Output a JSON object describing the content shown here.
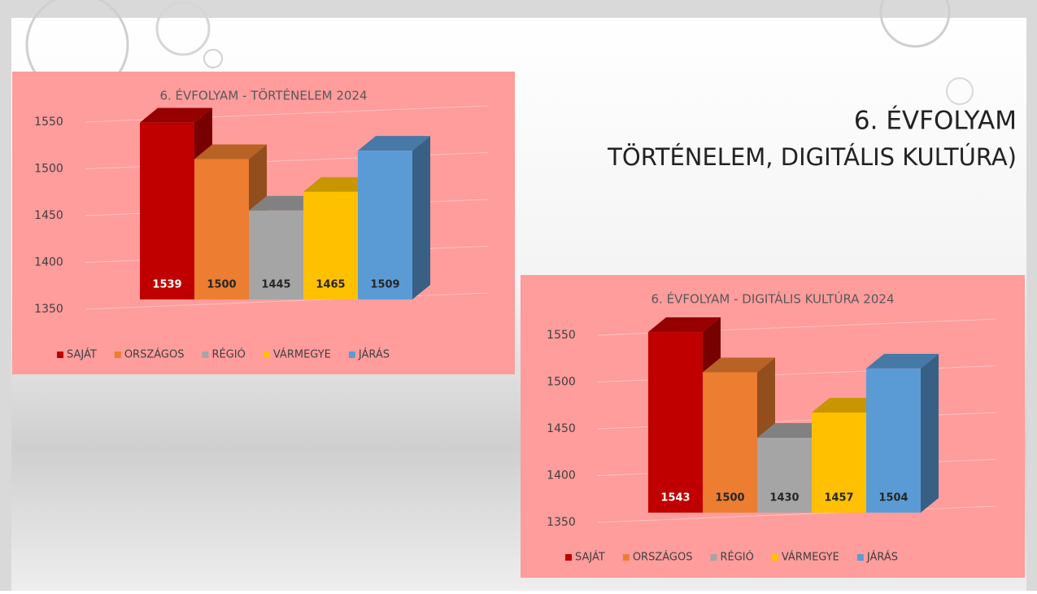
{
  "slide": {
    "title_lines": [
      "6. ÉVFOLYAM",
      "TÖRTÉNELEM, DIGITÁLIS KULTÚRA)"
    ]
  },
  "chart_data": [
    {
      "type": "bar",
      "title": "6. ÉVFOLYAM - TÖRTÉNELEM 2024",
      "categories": [
        "SAJÁT",
        "ORSZÁGOS",
        "RÉGIÓ",
        "VÁRMEGYE",
        "JÁRÁS"
      ],
      "values": [
        1539,
        1500,
        1445,
        1465,
        1509
      ],
      "colors": [
        "#c00000",
        "#ed7d31",
        "#a5a5a5",
        "#ffc000",
        "#5b9bd5"
      ],
      "ylim": [
        1350,
        1550
      ],
      "yticks": [
        1350,
        1400,
        1450,
        1500,
        1550
      ],
      "grid": true,
      "legend": "bottom"
    },
    {
      "type": "bar",
      "title": "6. ÉVFOLYAM - DIGITÁLIS KULTÚRA 2024",
      "categories": [
        "SAJÁT",
        "ORSZÁGOS",
        "RÉGIÓ",
        "VÁRMEGYE",
        "JÁRÁS"
      ],
      "values": [
        1543,
        1500,
        1430,
        1457,
        1504
      ],
      "colors": [
        "#c00000",
        "#ed7d31",
        "#a5a5a5",
        "#ffc000",
        "#5b9bd5"
      ],
      "ylim": [
        1350,
        1550
      ],
      "yticks": [
        1350,
        1400,
        1450,
        1500,
        1550
      ],
      "grid": true,
      "legend": "bottom"
    }
  ]
}
